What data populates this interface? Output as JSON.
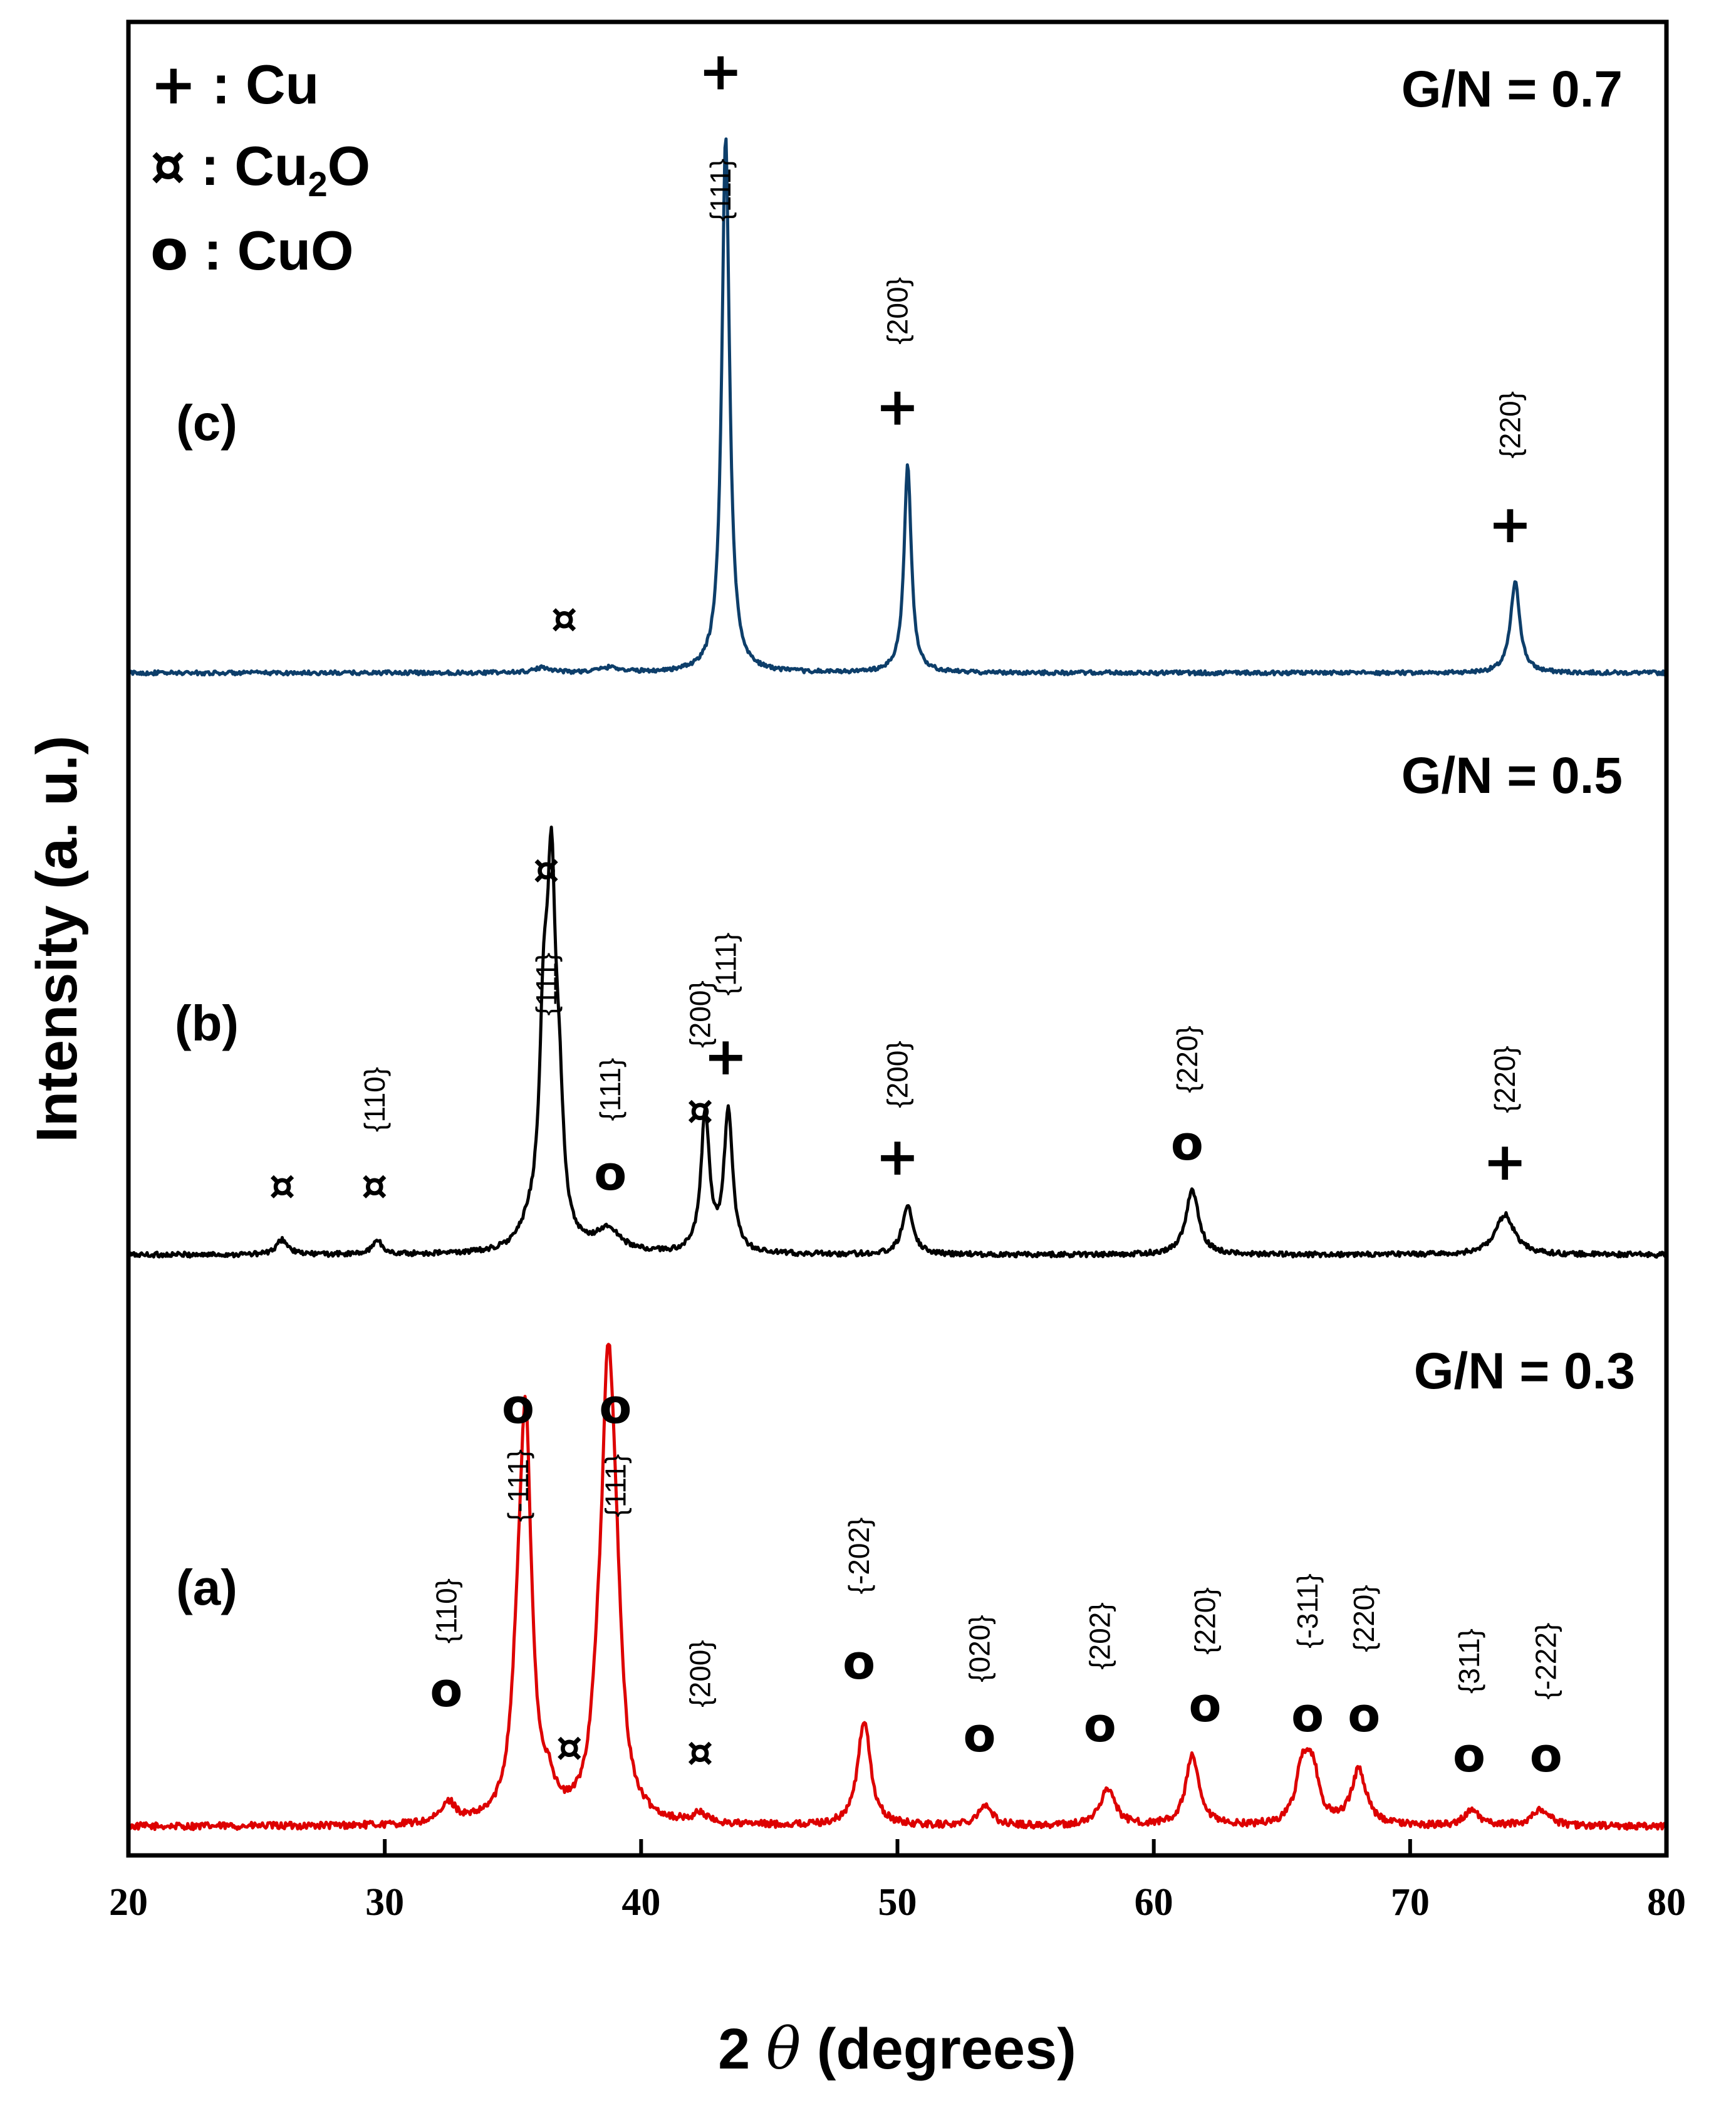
{
  "chart_data": {
    "type": "line",
    "xlabel_prefix": "2 ",
    "xlabel_symbol": "θ",
    "xlabel_suffix": " (degrees)",
    "ylabel": "Intensity (a. u.)",
    "xlim": [
      20,
      80
    ],
    "xticks": [
      "20",
      "30",
      "40",
      "50",
      "60",
      "70",
      "80"
    ],
    "legend": [
      {
        "symbol": "+",
        "text": "Cu"
      },
      {
        "symbol": "¤",
        "text": "Cu",
        "sub": "2",
        "tail": "O"
      },
      {
        "symbol": "o",
        "text": "CuO"
      }
    ],
    "legend_sep": " : ",
    "series": [
      {
        "id": "a",
        "label": "(a)",
        "condition": "G/N = 0.3",
        "color": "#dd0000",
        "baseline": 4,
        "noise": 1.4,
        "peaks": [
          [
            32.5,
            8,
            0.35
          ],
          [
            35.5,
            147,
            0.28
          ],
          [
            35.2,
            40,
            0.3
          ],
          [
            36.4,
            10,
            0.25
          ],
          [
            38.3,
            25,
            0.3
          ],
          [
            38.7,
            152,
            0.3
          ],
          [
            39.0,
            60,
            0.3
          ],
          [
            42.3,
            4,
            0.3
          ],
          [
            48.7,
            42,
            0.3
          ],
          [
            53.4,
            8,
            0.35
          ],
          [
            58.2,
            15,
            0.35
          ],
          [
            61.5,
            28,
            0.3
          ],
          [
            65.8,
            22,
            0.3
          ],
          [
            66.2,
            20,
            0.3
          ],
          [
            68.0,
            22,
            0.35
          ],
          [
            72.4,
            6,
            0.35
          ],
          [
            75.1,
            7,
            0.4
          ]
        ],
        "annotations": [
          {
            "x": 32.4,
            "marker": "o",
            "hkl": "{110}",
            "marker_y": 52,
            "hkl_y": 90
          },
          {
            "x": 35.2,
            "marker": "o",
            "hkl": "{-111}",
            "marker_y": 165,
            "hkl_y": 140
          },
          {
            "x": 37.2,
            "marker": "¤",
            "hkl": "",
            "marker_y": 30,
            "hkl_y": 0
          },
          {
            "x": 39.0,
            "marker": "o",
            "hkl": "{111}",
            "marker_y": 165,
            "hkl_y": 140
          },
          {
            "x": 42.3,
            "marker": "¤",
            "hkl": "{200}",
            "marker_y": 28,
            "hkl_y": 65
          },
          {
            "x": 48.5,
            "marker": "o",
            "hkl": "{-202}",
            "marker_y": 63,
            "hkl_y": 112
          },
          {
            "x": 53.2,
            "marker": "o",
            "hkl": "{020}",
            "marker_y": 34,
            "hkl_y": 75
          },
          {
            "x": 57.9,
            "marker": "o",
            "hkl": "{202}",
            "marker_y": 38,
            "hkl_y": 80
          },
          {
            "x": 62.0,
            "marker": "o",
            "hkl": "{220}",
            "marker_y": 46,
            "hkl_y": 86
          },
          {
            "x": 66.0,
            "marker": "o",
            "hkl": "{-311}",
            "marker_y": 42,
            "hkl_y": 90
          },
          {
            "x": 68.2,
            "marker": "o",
            "hkl": "{220}",
            "marker_y": 42,
            "hkl_y": 87
          },
          {
            "x": 72.3,
            "marker": "o",
            "hkl": "{311}",
            "marker_y": 26,
            "hkl_y": 70
          },
          {
            "x": 75.3,
            "marker": "o",
            "hkl": "{-222}",
            "marker_y": 26,
            "hkl_y": 70
          }
        ]
      },
      {
        "id": "b",
        "label": "(b)",
        "condition": "G/N = 0.5",
        "color": "#000000",
        "baseline": 4,
        "noise": 1.0,
        "peaks": [
          [
            26.0,
            6,
            0.25
          ],
          [
            29.7,
            6,
            0.2
          ],
          [
            36.2,
            75,
            0.2
          ],
          [
            36.5,
            130,
            0.2
          ],
          [
            36.8,
            45,
            0.2
          ],
          [
            35.7,
            8,
            0.5
          ],
          [
            38.7,
            9,
            0.6
          ],
          [
            42.5,
            55,
            0.2
          ],
          [
            43.4,
            56,
            0.2
          ],
          [
            50.4,
            20,
            0.25
          ],
          [
            61.5,
            26,
            0.3
          ],
          [
            73.7,
            16,
            0.45
          ]
        ],
        "annotations": [
          {
            "x": 26.0,
            "marker": "¤",
            "hkl": "",
            "marker_y": 26,
            "hkl_y": 0
          },
          {
            "x": 29.6,
            "marker": "¤",
            "hkl": "{110}",
            "marker_y": 26,
            "hkl_y": 66
          },
          {
            "x": 36.3,
            "marker": "¤",
            "hkl": "{111}",
            "marker_y": 152,
            "hkl_y": 112
          },
          {
            "x": 38.8,
            "marker": "o",
            "hkl": "{111}",
            "marker_y": 30,
            "hkl_y": 70
          },
          {
            "x": 42.3,
            "marker": "¤",
            "hkl": "{200}",
            "marker_y": 56,
            "hkl_y": 100
          },
          {
            "x": 43.3,
            "marker": "+",
            "hkl": "{111}",
            "marker_y": 76,
            "hkl_y": 120
          },
          {
            "x": 50.0,
            "marker": "+",
            "hkl": "{200}",
            "marker_y": 36,
            "hkl_y": 76
          },
          {
            "x": 61.3,
            "marker": "o",
            "hkl": "{220}",
            "marker_y": 42,
            "hkl_y": 82
          },
          {
            "x": 73.7,
            "marker": "+",
            "hkl": "{220}",
            "marker_y": 34,
            "hkl_y": 74
          }
        ]
      },
      {
        "id": "c",
        "label": "(c)",
        "condition": "G/N = 0.7",
        "color": "#0d3e6a",
        "baseline": 4,
        "noise": 0.6,
        "peaks": [
          [
            36.2,
            1.5,
            0.4
          ],
          [
            38.8,
            1.5,
            0.5
          ],
          [
            43.3,
            160,
            0.18
          ],
          [
            50.4,
            62,
            0.17
          ],
          [
            74.1,
            27,
            0.22
          ]
        ],
        "annotations": [
          {
            "x": 37.0,
            "marker": "¤",
            "hkl": "",
            "marker_y": 16,
            "hkl_y": 0
          },
          {
            "x": 43.1,
            "marker": "+",
            "hkl": "{111}",
            "marker_y": 178,
            "hkl_y": 148
          },
          {
            "x": 50.0,
            "marker": "+",
            "hkl": "{200}",
            "marker_y": 78,
            "hkl_y": 112
          },
          {
            "x": 73.9,
            "marker": "+",
            "hkl": "{220}",
            "marker_y": 43,
            "hkl_y": 78
          }
        ]
      }
    ]
  }
}
